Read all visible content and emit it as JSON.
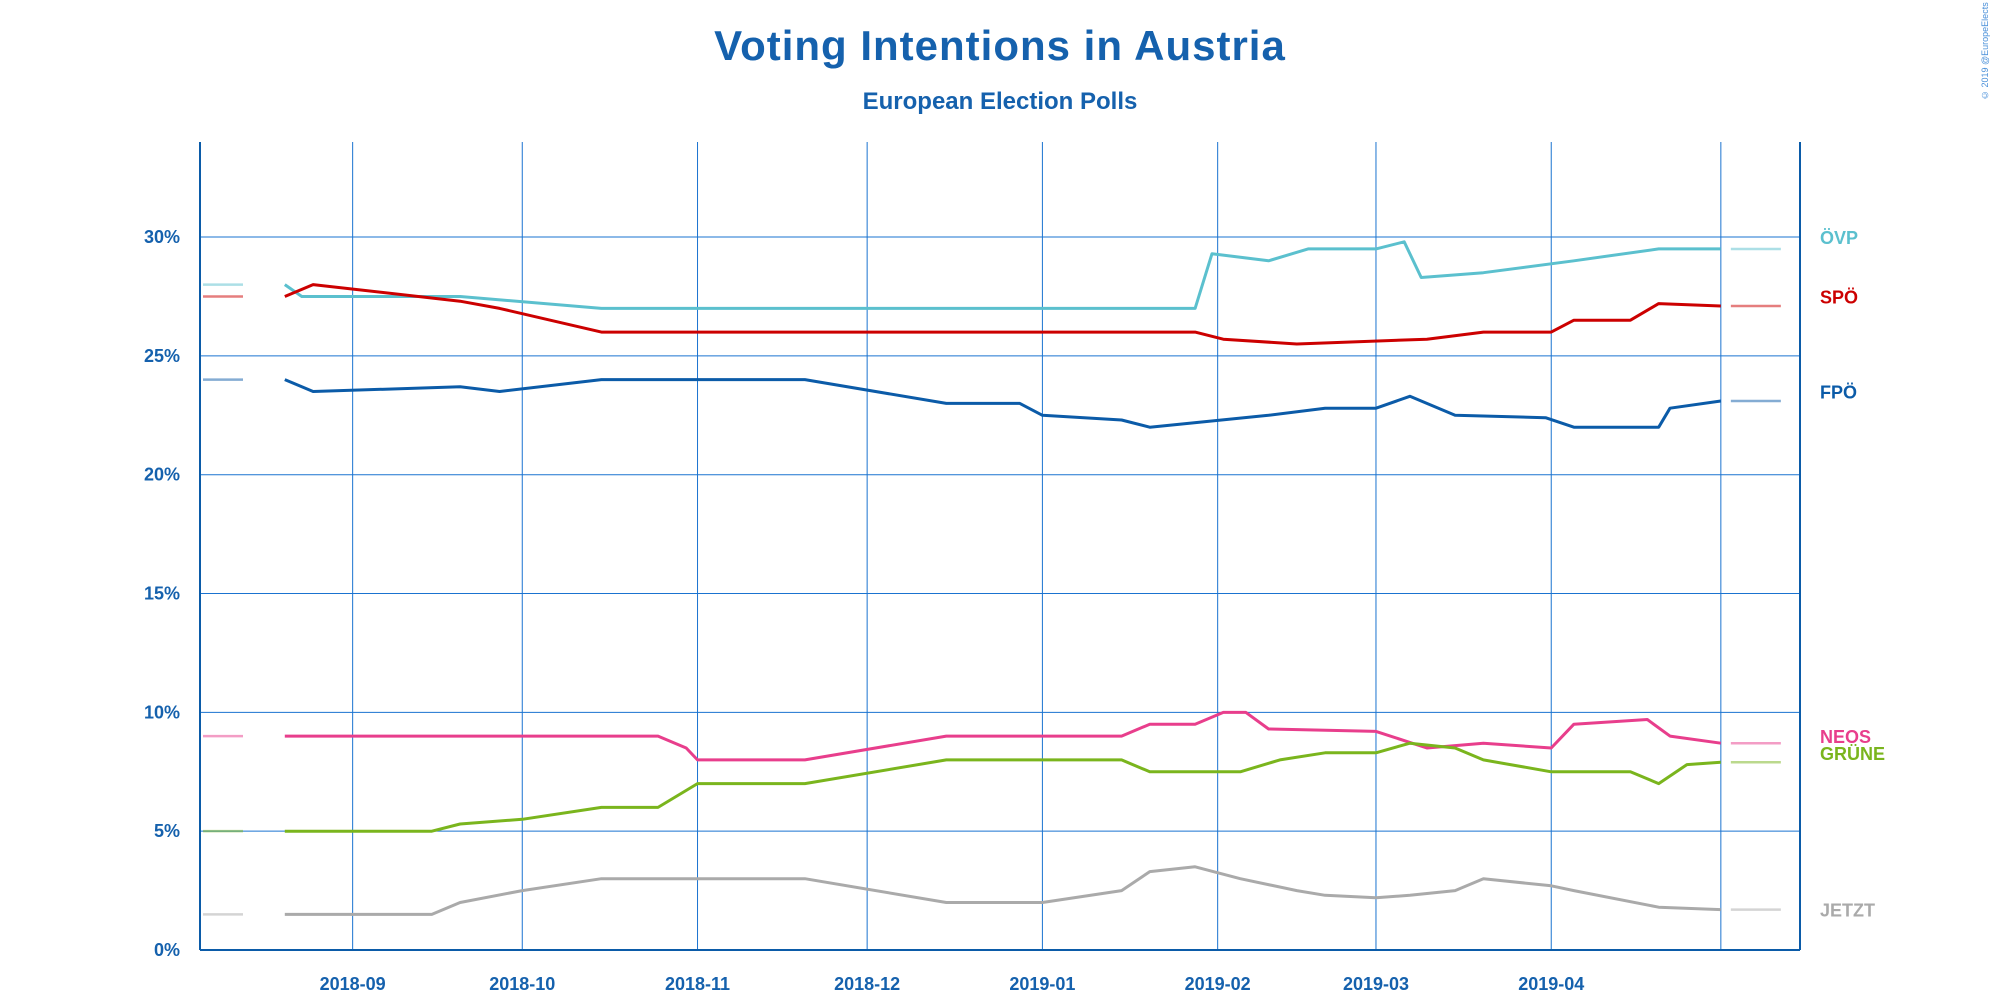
{
  "title": "Voting Intentions in Austria",
  "subtitle": "European Election Polls",
  "copyright": "© 2019 @EuropeElects",
  "chart_data": {
    "type": "line",
    "title": "Voting Intentions in Austria",
    "subtitle": "European Election Polls",
    "xlabel": "",
    "ylabel": "",
    "x_ticks": [
      "2018-09",
      "2018-10",
      "2018-11",
      "2018-12",
      "2019-01",
      "2019-02",
      "2019-03",
      "2019-04"
    ],
    "y_ticks": [
      "0%",
      "5%",
      "10%",
      "15%",
      "20%",
      "25%",
      "30%"
    ],
    "xlim": [
      "2018-08-05",
      "2019-05-15"
    ],
    "ylim": [
      0,
      34
    ],
    "grid": true,
    "legend": "right, labels at line ends",
    "series": [
      {
        "name": "ÖVP",
        "color": "#5bc0ce",
        "points": [
          [
            "2018-08-20",
            28
          ],
          [
            "2018-08-23",
            27.5
          ],
          [
            "2018-09-20",
            27.5
          ],
          [
            "2018-10-15",
            27
          ],
          [
            "2019-01-28",
            27
          ],
          [
            "2019-01-31",
            29.3
          ],
          [
            "2019-02-10",
            29
          ],
          [
            "2019-02-17",
            29.5
          ],
          [
            "2019-03-01",
            29.5
          ],
          [
            "2019-03-06",
            29.8
          ],
          [
            "2019-03-09",
            28.3
          ],
          [
            "2019-03-20",
            28.5
          ],
          [
            "2019-04-05",
            29
          ],
          [
            "2019-04-20",
            29.5
          ],
          [
            "2019-05-01",
            29.5
          ]
        ]
      },
      {
        "name": "SPÖ",
        "color": "#cc0000",
        "points": [
          [
            "2018-08-20",
            27.5
          ],
          [
            "2018-08-25",
            28
          ],
          [
            "2018-09-20",
            27.3
          ],
          [
            "2018-09-27",
            27
          ],
          [
            "2018-10-15",
            26
          ],
          [
            "2019-01-28",
            26
          ],
          [
            "2019-02-02",
            25.7
          ],
          [
            "2019-02-15",
            25.5
          ],
          [
            "2019-03-10",
            25.7
          ],
          [
            "2019-03-20",
            26
          ],
          [
            "2019-04-01",
            26
          ],
          [
            "2019-04-05",
            26.5
          ],
          [
            "2019-04-15",
            26.5
          ],
          [
            "2019-04-20",
            27.2
          ],
          [
            "2019-05-01",
            27.1
          ]
        ]
      },
      {
        "name": "FPÖ",
        "color": "#0b5ba8",
        "points": [
          [
            "2018-08-20",
            24
          ],
          [
            "2018-08-25",
            23.5
          ],
          [
            "2018-09-20",
            23.7
          ],
          [
            "2018-09-27",
            23.5
          ],
          [
            "2018-10-15",
            24
          ],
          [
            "2018-11-20",
            24
          ],
          [
            "2018-12-15",
            23
          ],
          [
            "2018-12-28",
            23
          ],
          [
            "2019-01-01",
            22.5
          ],
          [
            "2019-01-15",
            22.3
          ],
          [
            "2019-01-20",
            22
          ],
          [
            "2019-02-10",
            22.5
          ],
          [
            "2019-02-20",
            22.8
          ],
          [
            "2019-03-01",
            22.8
          ],
          [
            "2019-03-07",
            23.3
          ],
          [
            "2019-03-15",
            22.5
          ],
          [
            "2019-03-31",
            22.4
          ],
          [
            "2019-04-05",
            22
          ],
          [
            "2019-04-20",
            22
          ],
          [
            "2019-04-22",
            22.8
          ],
          [
            "2019-05-01",
            23.1
          ]
        ]
      },
      {
        "name": "NEOS",
        "color": "#e83e8c",
        "points": [
          [
            "2018-08-20",
            9
          ],
          [
            "2018-09-10",
            9
          ],
          [
            "2018-10-25",
            9
          ],
          [
            "2018-10-30",
            8.5
          ],
          [
            "2018-11-01",
            8
          ],
          [
            "2018-11-20",
            8
          ],
          [
            "2018-12-15",
            9
          ],
          [
            "2019-01-15",
            9
          ],
          [
            "2019-01-20",
            9.5
          ],
          [
            "2019-01-28",
            9.5
          ],
          [
            "2019-02-02",
            10
          ],
          [
            "2019-02-06",
            10
          ],
          [
            "2019-02-10",
            9.3
          ],
          [
            "2019-03-01",
            9.2
          ],
          [
            "2019-03-10",
            8.5
          ],
          [
            "2019-03-20",
            8.7
          ],
          [
            "2019-04-01",
            8.5
          ],
          [
            "2019-04-05",
            9.5
          ],
          [
            "2019-04-18",
            9.7
          ],
          [
            "2019-04-22",
            9
          ],
          [
            "2019-05-01",
            8.7
          ]
        ]
      },
      {
        "name": "GRÜNE",
        "color": "#7ab51d",
        "points": [
          [
            "2018-08-20",
            5
          ],
          [
            "2018-09-15",
            5
          ],
          [
            "2018-09-20",
            5.3
          ],
          [
            "2018-10-01",
            5.5
          ],
          [
            "2018-10-15",
            6
          ],
          [
            "2018-10-25",
            6
          ],
          [
            "2018-11-01",
            7
          ],
          [
            "2018-11-20",
            7
          ],
          [
            "2018-12-15",
            8
          ],
          [
            "2019-01-15",
            8
          ],
          [
            "2019-01-20",
            7.5
          ],
          [
            "2019-01-28",
            7.5
          ],
          [
            "2019-02-05",
            7.5
          ],
          [
            "2019-02-12",
            8
          ],
          [
            "2019-02-20",
            8.3
          ],
          [
            "2019-03-01",
            8.3
          ],
          [
            "2019-03-07",
            8.7
          ],
          [
            "2019-03-15",
            8.5
          ],
          [
            "2019-03-20",
            8
          ],
          [
            "2019-04-01",
            7.5
          ],
          [
            "2019-04-15",
            7.5
          ],
          [
            "2019-04-20",
            7
          ],
          [
            "2019-04-25",
            7.8
          ],
          [
            "2019-05-01",
            7.9
          ]
        ]
      },
      {
        "name": "JETZT",
        "color": "#aaaaaa",
        "points": [
          [
            "2018-08-20",
            1.5
          ],
          [
            "2018-09-15",
            1.5
          ],
          [
            "2018-09-20",
            2
          ],
          [
            "2018-10-01",
            2.5
          ],
          [
            "2018-10-15",
            3
          ],
          [
            "2018-11-20",
            3
          ],
          [
            "2018-12-15",
            2
          ],
          [
            "2019-01-01",
            2
          ],
          [
            "2019-01-15",
            2.5
          ],
          [
            "2019-01-20",
            3.3
          ],
          [
            "2019-01-28",
            3.5
          ],
          [
            "2019-02-05",
            3
          ],
          [
            "2019-02-15",
            2.5
          ],
          [
            "2019-02-20",
            2.3
          ],
          [
            "2019-03-01",
            2.2
          ],
          [
            "2019-03-07",
            2.3
          ],
          [
            "2019-03-15",
            2.5
          ],
          [
            "2019-03-20",
            3
          ],
          [
            "2019-04-01",
            2.7
          ],
          [
            "2019-04-05",
            2.5
          ],
          [
            "2019-04-20",
            1.8
          ],
          [
            "2019-05-01",
            1.7
          ]
        ]
      }
    ]
  }
}
